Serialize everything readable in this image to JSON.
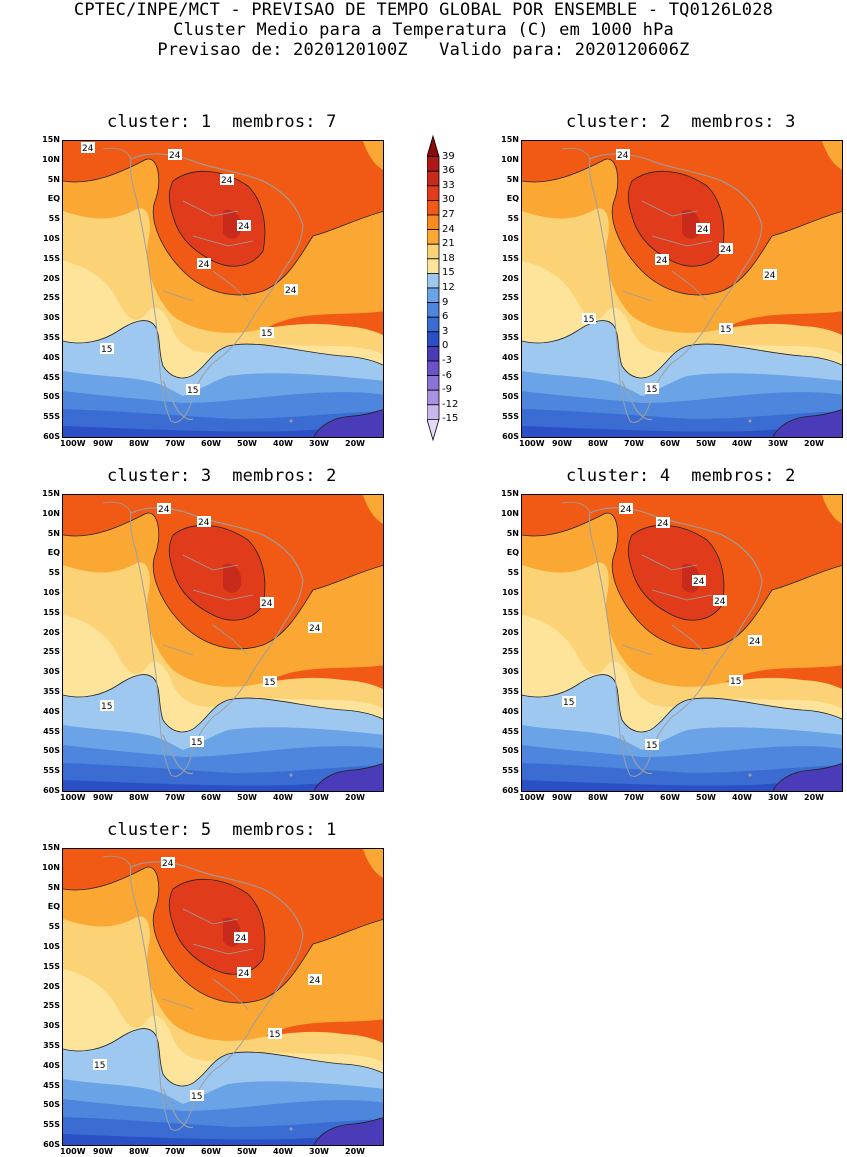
{
  "header": {
    "line1": "CPTEC/INPE/MCT - PREVISAO DE TEMPO GLOBAL POR ENSEMBLE - TQ0126L028",
    "line2": "Cluster Medio para a Temperatura (C) em 1000 hPa",
    "line3": "Previsao de: 2020120100Z   Valido para: 2020120606Z"
  },
  "panels": [
    {
      "title": "cluster: 1  membros: 7"
    },
    {
      "title": "cluster: 2  membros: 3"
    },
    {
      "title": "cluster: 3  membros: 2"
    },
    {
      "title": "cluster: 4  membros: 2"
    },
    {
      "title": "cluster: 5  membros: 1"
    }
  ],
  "axes": {
    "lat_labels": [
      "15N",
      "10N",
      "5N",
      "EQ",
      "5S",
      "10S",
      "15S",
      "20S",
      "25S",
      "30S",
      "35S",
      "40S",
      "45S",
      "50S",
      "55S",
      "60S"
    ],
    "lon_labels": [
      "100W",
      "90W",
      "80W",
      "70W",
      "60W",
      "50W",
      "40W",
      "30W",
      "20W"
    ]
  },
  "contour_labels": {
    "warm": "24",
    "cool": "15"
  },
  "colorbar": {
    "levels": [
      "39",
      "36",
      "33",
      "30",
      "27",
      "24",
      "21",
      "18",
      "15",
      "12",
      "9",
      "6",
      "3",
      "0",
      "-3",
      "-6",
      "-9",
      "-12",
      "-15"
    ],
    "colors": [
      "#8c0a0a",
      "#b01818",
      "#c82a1c",
      "#e03c1c",
      "#f05a14",
      "#f98a1e",
      "#fba733",
      "#fcd277",
      "#fde49a",
      "#9ec8f0",
      "#6aa4e6",
      "#4d86dc",
      "#3a6cd2",
      "#2b4fc4",
      "#4a3cb8",
      "#6a52c8",
      "#8a72d6",
      "#a892e2",
      "#c8b8ee",
      "#e4daf6"
    ]
  }
}
